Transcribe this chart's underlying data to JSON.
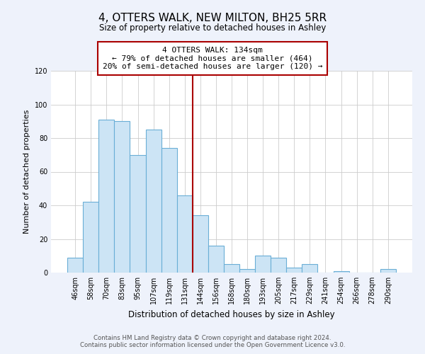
{
  "title": "4, OTTERS WALK, NEW MILTON, BH25 5RR",
  "subtitle": "Size of property relative to detached houses in Ashley",
  "xlabel": "Distribution of detached houses by size in Ashley",
  "ylabel": "Number of detached properties",
  "bar_color": "#cce4f5",
  "bar_edge_color": "#6aaed6",
  "categories": [
    "46sqm",
    "58sqm",
    "70sqm",
    "83sqm",
    "95sqm",
    "107sqm",
    "119sqm",
    "131sqm",
    "144sqm",
    "156sqm",
    "168sqm",
    "180sqm",
    "193sqm",
    "205sqm",
    "217sqm",
    "229sqm",
    "241sqm",
    "254sqm",
    "266sqm",
    "278sqm",
    "290sqm"
  ],
  "values": [
    9,
    42,
    91,
    90,
    70,
    85,
    74,
    46,
    34,
    16,
    5,
    2,
    10,
    9,
    3,
    5,
    0,
    1,
    0,
    0,
    2
  ],
  "vline_after_index": 7,
  "vline_color": "#aa0000",
  "annotation_text_line1": "4 OTTERS WALK: 134sqm",
  "annotation_text_line2": "← 79% of detached houses are smaller (464)",
  "annotation_text_line3": "20% of semi-detached houses are larger (120) →",
  "ylim": [
    0,
    120
  ],
  "yticks": [
    0,
    20,
    40,
    60,
    80,
    100,
    120
  ],
  "footer_text": "Contains HM Land Registry data © Crown copyright and database right 2024.\nContains public sector information licensed under the Open Government Licence v3.0.",
  "background_color": "#eef2fb",
  "plot_background_color": "#ffffff",
  "grid_color": "#cccccc"
}
